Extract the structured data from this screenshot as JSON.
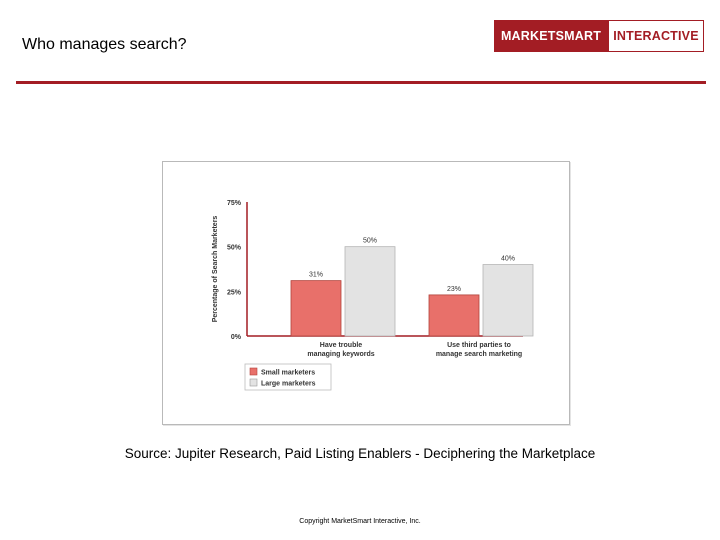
{
  "slide": {
    "title": "Who manages search?",
    "source": "Source: Jupiter Research, Paid Listing Enablers - Deciphering the Marketplace",
    "copyright": "Copyright MarketSmart Interactive, Inc."
  },
  "logo": {
    "left_text": "MARKETSMART",
    "right_text": "INTERACTIVE",
    "color": "#a31d24"
  },
  "chart_data": {
    "type": "bar",
    "title": "",
    "xlabel": "",
    "ylabel": "Percentage of Search Marketers",
    "ylim": [
      0,
      75
    ],
    "yticks": [
      0,
      25,
      50,
      75
    ],
    "ytick_labels": [
      "0%",
      "25%",
      "50%",
      "75%"
    ],
    "categories": [
      [
        "Have trouble",
        "managing keywords"
      ],
      [
        "Use third parties to",
        "manage search marketing"
      ]
    ],
    "series": [
      {
        "name": "Small marketers",
        "values": [
          31,
          23
        ],
        "labels": [
          "31%",
          "23%"
        ],
        "color": "#e8706a"
      },
      {
        "name": "Large marketers",
        "values": [
          50,
          40
        ],
        "labels": [
          "50%",
          "40%"
        ],
        "color": "#e3e3e3"
      }
    ],
    "legend_position": "bottom-left",
    "grid": false
  }
}
